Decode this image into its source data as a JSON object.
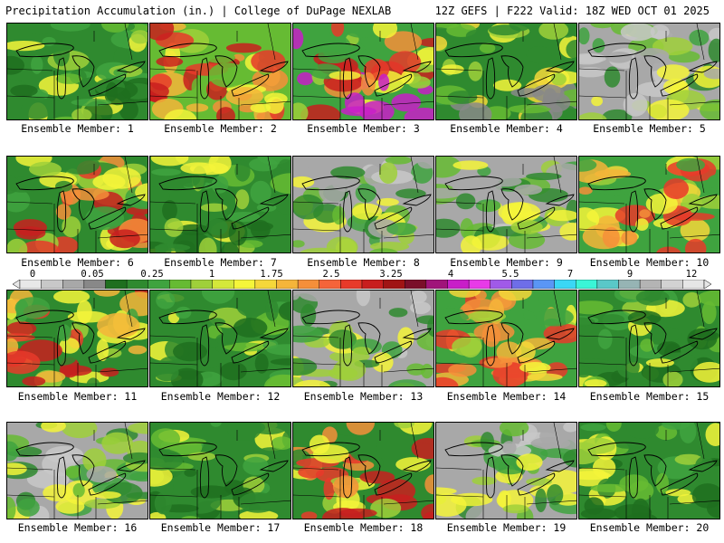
{
  "header": {
    "title": "Precipitation Accumulation (in.) | College of DuPage NEXLAB",
    "run": "12Z GEFS | F222 Valid: 18Z WED OCT 01 2025"
  },
  "members": [
    {
      "label": "Ensemble Member: 1",
      "palette": "green-mixed"
    },
    {
      "label": "Ensemble Member: 2",
      "palette": "red-south"
    },
    {
      "label": "Ensemble Member: 3",
      "palette": "purple-southeast"
    },
    {
      "label": "Ensemble Member: 4",
      "palette": "green-yellow"
    },
    {
      "label": "Ensemble Member: 5",
      "palette": "gray-green"
    },
    {
      "label": "Ensemble Member: 6",
      "palette": "green-red-se"
    },
    {
      "label": "Ensemble Member: 7",
      "palette": "green-mixed"
    },
    {
      "label": "Ensemble Member: 8",
      "palette": "gray-green"
    },
    {
      "label": "Ensemble Member: 9",
      "palette": "gray-green"
    },
    {
      "label": "Ensemble Member: 10",
      "palette": "yellow-orange"
    },
    {
      "label": "Ensemble Member: 11",
      "palette": "green-red-s"
    },
    {
      "label": "Ensemble Member: 12",
      "palette": "green-mixed"
    },
    {
      "label": "Ensemble Member: 13",
      "palette": "gray-green"
    },
    {
      "label": "Ensemble Member: 14",
      "palette": "yellow-orange"
    },
    {
      "label": "Ensemble Member: 15",
      "palette": "green-mixed"
    },
    {
      "label": "Ensemble Member: 16",
      "palette": "gray-green"
    },
    {
      "label": "Ensemble Member: 17",
      "palette": "green-mixed"
    },
    {
      "label": "Ensemble Member: 18",
      "palette": "green-red-se"
    },
    {
      "label": "Ensemble Member: 19",
      "palette": "gray-green"
    },
    {
      "label": "Ensemble Member: 20",
      "palette": "green-mixed"
    }
  ],
  "colorbar": {
    "labels": [
      "0",
      "0.05",
      "0.25",
      "1",
      "1.75",
      "2.5",
      "3.25",
      "4",
      "5.5",
      "7",
      "9",
      "12"
    ],
    "colors": [
      "#e8e8e8",
      "#c8c8c8",
      "#a8a8a8",
      "#888888",
      "#1f6f1f",
      "#2f8a2f",
      "#3fa33f",
      "#66bb33",
      "#9fd03a",
      "#d4e83a",
      "#f5f53a",
      "#f5d73a",
      "#f5b53a",
      "#f58f3a",
      "#f5643a",
      "#e83a2a",
      "#c81e1e",
      "#a01414",
      "#7a0f2a",
      "#a0147a",
      "#c81ec8",
      "#e83ae8",
      "#a05ae8",
      "#6e6ee8",
      "#5a96f5",
      "#3ad7f5",
      "#3af5d7",
      "#5ac8c8",
      "#96b4b4",
      "#b4b4b4",
      "#d2d2d2",
      "#e6e6e6"
    ]
  }
}
